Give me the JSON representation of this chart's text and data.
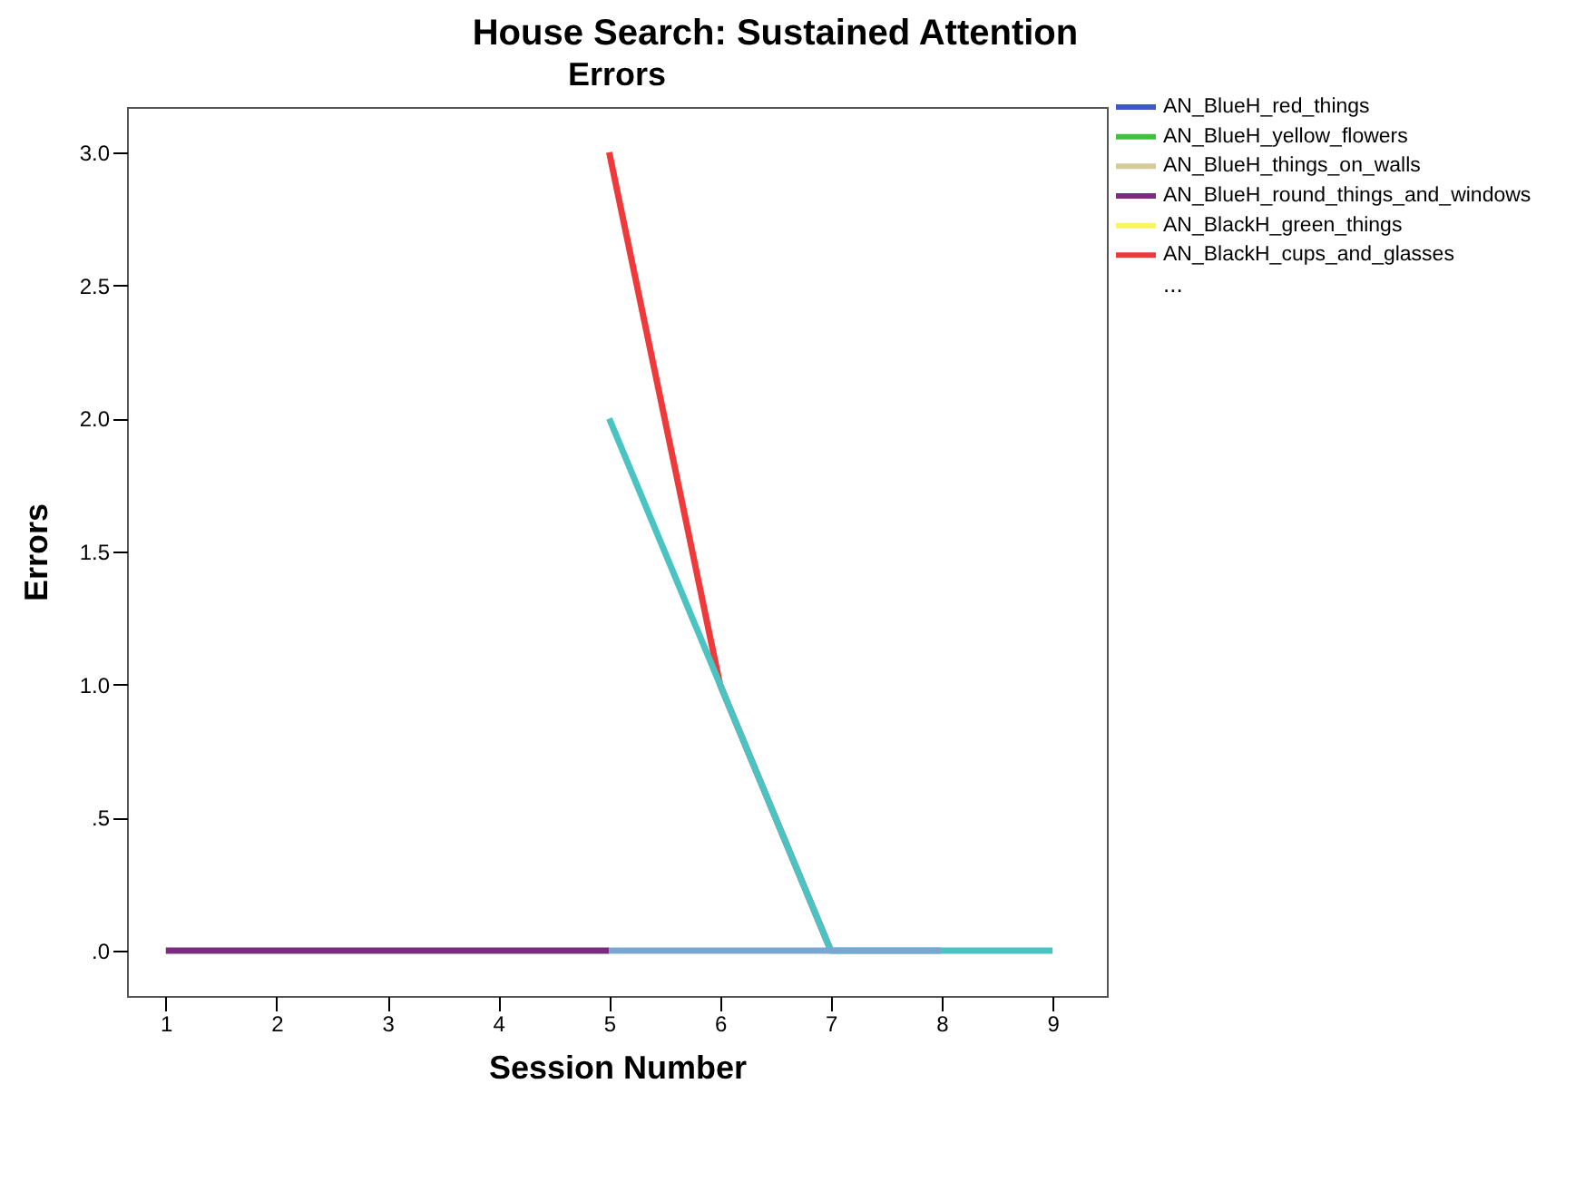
{
  "chart_data": {
    "type": "line",
    "title": "House Search: Sustained Attention",
    "subtitle": "Errors",
    "xlabel": "Session Number",
    "ylabel": "Errors",
    "x": [
      1,
      2,
      3,
      4,
      5,
      6,
      7,
      8,
      9
    ],
    "series": [
      {
        "name": "AN_BlueH_red_things",
        "color": "#3e58c9",
        "values": [
          null,
          null,
          null,
          null,
          null,
          null,
          null,
          null,
          null
        ]
      },
      {
        "name": "AN_BlueH_yellow_flowers",
        "color": "#3ec13e",
        "values": [
          null,
          null,
          null,
          null,
          null,
          null,
          null,
          null,
          null
        ]
      },
      {
        "name": "AN_BlueH_things_on_walls",
        "color": "#d4ca9a",
        "values": [
          null,
          null,
          null,
          null,
          null,
          null,
          null,
          null,
          null
        ]
      },
      {
        "name": "AN_BlueH_round_things_and_windows",
        "color": "#7b2c80",
        "values": [
          0,
          0,
          0,
          0,
          0,
          null,
          null,
          null,
          null
        ]
      },
      {
        "name": "AN_BlackH_green_things",
        "color": "#f9f55a",
        "values": [
          null,
          null,
          null,
          null,
          null,
          null,
          null,
          null,
          null
        ]
      },
      {
        "name": "AN_BlackH_cups_and_glasses",
        "color": "#ee3a3a",
        "values": [
          null,
          null,
          null,
          null,
          3,
          1,
          0,
          null,
          null
        ]
      },
      {
        "color": "#4bc3c3",
        "values": [
          null,
          null,
          null,
          null,
          2,
          1,
          0,
          0,
          0
        ]
      },
      {
        "color": "#7aa7d1",
        "values": [
          null,
          null,
          null,
          null,
          0,
          0,
          0,
          0,
          null
        ]
      }
    ],
    "annotations": [
      "..."
    ],
    "xlim": [
      0.65,
      9.49
    ],
    "xticks": [
      1,
      2,
      3,
      4,
      5,
      6,
      7,
      8,
      9
    ],
    "ylim": [
      -0.17,
      3.17
    ],
    "yticks": [
      {
        "value": 0,
        "label": ".0"
      },
      {
        "value": 0.5,
        "label": ".5"
      },
      {
        "value": 1,
        "label": "1.0"
      },
      {
        "value": 1.5,
        "label": "1.5"
      },
      {
        "value": 2,
        "label": "2.0"
      },
      {
        "value": 2.5,
        "label": "2.5"
      },
      {
        "value": 3,
        "label": "3.0"
      }
    ],
    "legend": "right"
  }
}
